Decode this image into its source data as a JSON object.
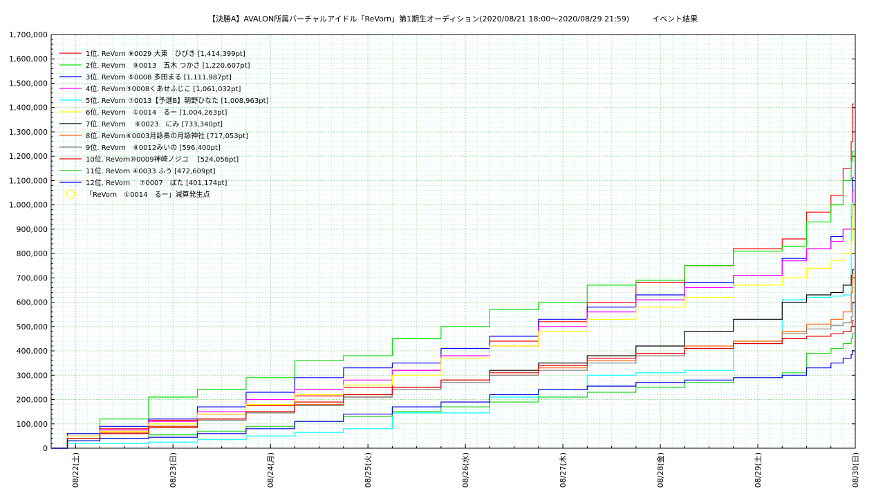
{
  "chart_data": {
    "type": "line",
    "title": "【決勝A】AVALON所属バーチャルアイドル「ReVorn」第1期生オーディション(2020/08/21 18:00〜2020/08/29 21:59)　　　イベント結果",
    "xlabel": "",
    "ylabel": "",
    "ylim": [
      0,
      1700000
    ],
    "yticks": [
      "0",
      "100,000",
      "200,000",
      "300,000",
      "400,000",
      "500,000",
      "600,000",
      "700,000",
      "800,000",
      "900,000",
      "1,000,000",
      "1,100,000",
      "1,200,000",
      "1,300,000",
      "1,400,000",
      "1,500,000",
      "1,600,000",
      "1,700,000"
    ],
    "x_start": "2020-08-21 18:00",
    "x_end": "2020-08-29 24:00",
    "xtick_labels": [
      "08/22(土)",
      "08/23(日)",
      "08/24(月)",
      "08/25(火)",
      "08/26(水)",
      "08/27(木)",
      "08/28(金)",
      "08/29(土)",
      "08/30(日)"
    ],
    "grid": true,
    "legend_position": "top-left",
    "series": [
      {
        "name": "1位. ReVorn ⑨0029 大東　ひびき [1,414,399pt]",
        "color": "#ff0000",
        "x": [
          "2020-08-21 18:00",
          "2020-08-21 22:00",
          "2020-08-22 06:00",
          "2020-08-22 18:00",
          "2020-08-23 06:00",
          "2020-08-23 18:00",
          "2020-08-24 06:00",
          "2020-08-24 18:00",
          "2020-08-25 06:00",
          "2020-08-25 18:00",
          "2020-08-26 06:00",
          "2020-08-26 18:00",
          "2020-08-27 06:00",
          "2020-08-27 18:00",
          "2020-08-28 06:00",
          "2020-08-28 18:00",
          "2020-08-29 06:00",
          "2020-08-29 12:00",
          "2020-08-29 18:00",
          "2020-08-29 21:00",
          "2020-08-29 23:00",
          "2020-08-30 00:00"
        ],
        "values": [
          0,
          60000,
          80000,
          115000,
          140000,
          175000,
          215000,
          250000,
          320000,
          380000,
          440000,
          520000,
          600000,
          680000,
          750000,
          820000,
          860000,
          970000,
          1040000,
          1150000,
          1260000,
          1414399
        ]
      },
      {
        "name": "2位. ReVorn　⑨0013　五木 つかさ [1,220,607pt]",
        "color": "#00e000",
        "x": [
          "2020-08-21 18:00",
          "2020-08-21 22:00",
          "2020-08-22 06:00",
          "2020-08-22 18:00",
          "2020-08-23 06:00",
          "2020-08-23 18:00",
          "2020-08-24 06:00",
          "2020-08-24 18:00",
          "2020-08-25 06:00",
          "2020-08-25 18:00",
          "2020-08-26 06:00",
          "2020-08-26 18:00",
          "2020-08-27 06:00",
          "2020-08-27 18:00",
          "2020-08-28 06:00",
          "2020-08-28 18:00",
          "2020-08-29 06:00",
          "2020-08-29 12:00",
          "2020-08-29 18:00",
          "2020-08-29 21:00",
          "2020-08-29 23:00",
          "2020-08-30 00:00"
        ],
        "values": [
          0,
          60000,
          120000,
          210000,
          240000,
          290000,
          360000,
          380000,
          450000,
          500000,
          570000,
          600000,
          670000,
          690000,
          750000,
          810000,
          830000,
          930000,
          1000000,
          1100000,
          1180000,
          1220607
        ]
      },
      {
        "name": "3位. ReVorn ⑤0008 多田まる [1,111,987pt]",
        "color": "#0000ff",
        "x": [
          "2020-08-21 18:00",
          "2020-08-21 22:00",
          "2020-08-22 06:00",
          "2020-08-22 18:00",
          "2020-08-23 06:00",
          "2020-08-23 18:00",
          "2020-08-24 06:00",
          "2020-08-24 18:00",
          "2020-08-25 06:00",
          "2020-08-25 18:00",
          "2020-08-26 06:00",
          "2020-08-26 18:00",
          "2020-08-27 06:00",
          "2020-08-27 18:00",
          "2020-08-28 06:00",
          "2020-08-28 18:00",
          "2020-08-29 06:00",
          "2020-08-29 12:00",
          "2020-08-29 18:00",
          "2020-08-29 21:00",
          "2020-08-29 23:00",
          "2020-08-30 00:00"
        ],
        "values": [
          0,
          60000,
          90000,
          120000,
          170000,
          230000,
          290000,
          330000,
          350000,
          410000,
          460000,
          530000,
          580000,
          630000,
          680000,
          710000,
          780000,
          820000,
          870000,
          900000,
          950000,
          1111987
        ]
      },
      {
        "name": "4位. ReVorn③0008くあせふじこ [1,061,032pt]",
        "color": "#ff00ff",
        "x": [
          "2020-08-21 18:00",
          "2020-08-21 22:00",
          "2020-08-22 06:00",
          "2020-08-22 18:00",
          "2020-08-23 06:00",
          "2020-08-23 18:00",
          "2020-08-24 06:00",
          "2020-08-24 18:00",
          "2020-08-25 06:00",
          "2020-08-25 18:00",
          "2020-08-26 06:00",
          "2020-08-26 18:00",
          "2020-08-27 06:00",
          "2020-08-27 18:00",
          "2020-08-28 06:00",
          "2020-08-28 18:00",
          "2020-08-29 06:00",
          "2020-08-29 12:00",
          "2020-08-29 18:00",
          "2020-08-29 21:00",
          "2020-08-29 23:00",
          "2020-08-30 00:00"
        ],
        "values": [
          0,
          50000,
          75000,
          110000,
          150000,
          200000,
          240000,
          280000,
          320000,
          380000,
          420000,
          500000,
          560000,
          610000,
          660000,
          710000,
          770000,
          820000,
          850000,
          900000,
          950000,
          1061032
        ]
      },
      {
        "name": "5位. ReVorn ⑦0013【予選B】朝野ひなた [1,008,963pt]",
        "color": "#00ffff",
        "x": [
          "2020-08-21 18:00",
          "2020-08-21 22:00",
          "2020-08-22 06:00",
          "2020-08-22 18:00",
          "2020-08-23 06:00",
          "2020-08-23 18:00",
          "2020-08-24 06:00",
          "2020-08-24 18:00",
          "2020-08-25 06:00",
          "2020-08-25 18:00",
          "2020-08-26 06:00",
          "2020-08-26 18:00",
          "2020-08-27 06:00",
          "2020-08-27 18:00",
          "2020-08-28 06:00",
          "2020-08-28 18:00",
          "2020-08-29 06:00",
          "2020-08-29 12:00",
          "2020-08-29 18:00",
          "2020-08-29 21:00",
          "2020-08-29 23:00",
          "2020-08-30 00:00"
        ],
        "values": [
          0,
          20000,
          20000,
          25000,
          35000,
          50000,
          65000,
          80000,
          145000,
          145000,
          210000,
          240000,
          300000,
          310000,
          320000,
          440000,
          610000,
          620000,
          625000,
          630000,
          1000000,
          1008963
        ]
      },
      {
        "name": "6位. ReVorn　①0014　るー [1,004,263pt]",
        "color": "#ffff00",
        "x": [
          "2020-08-21 18:00",
          "2020-08-21 22:00",
          "2020-08-22 06:00",
          "2020-08-22 18:00",
          "2020-08-23 06:00",
          "2020-08-23 18:00",
          "2020-08-24 06:00",
          "2020-08-24 18:00",
          "2020-08-25 06:00",
          "2020-08-25 18:00",
          "2020-08-26 06:00",
          "2020-08-26 18:00",
          "2020-08-27 06:00",
          "2020-08-27 18:00",
          "2020-08-28 06:00",
          "2020-08-28 18:00",
          "2020-08-29 06:00",
          "2020-08-29 12:00",
          "2020-08-29 18:00",
          "2020-08-29 21:00",
          "2020-08-29 23:00",
          "2020-08-30 00:00"
        ],
        "values": [
          0,
          50000,
          70000,
          100000,
          140000,
          180000,
          220000,
          260000,
          300000,
          370000,
          420000,
          480000,
          530000,
          580000,
          620000,
          670000,
          700000,
          740000,
          770000,
          800000,
          850000,
          1004263
        ]
      },
      {
        "name": "7位. ReVorn　 ⑥0023　にみ [733,340pt]",
        "color": "#000000",
        "x": [
          "2020-08-21 18:00",
          "2020-08-21 22:00",
          "2020-08-22 06:00",
          "2020-08-22 18:00",
          "2020-08-23 06:00",
          "2020-08-23 18:00",
          "2020-08-24 06:00",
          "2020-08-24 18:00",
          "2020-08-25 06:00",
          "2020-08-25 18:00",
          "2020-08-26 06:00",
          "2020-08-26 18:00",
          "2020-08-27 06:00",
          "2020-08-27 18:00",
          "2020-08-28 06:00",
          "2020-08-28 18:00",
          "2020-08-29 06:00",
          "2020-08-29 12:00",
          "2020-08-29 18:00",
          "2020-08-29 21:00",
          "2020-08-29 23:00",
          "2020-08-30 00:00"
        ],
        "values": [
          0,
          40000,
          60000,
          90000,
          120000,
          150000,
          180000,
          210000,
          250000,
          280000,
          320000,
          350000,
          380000,
          420000,
          480000,
          530000,
          600000,
          630000,
          640000,
          670000,
          710000,
          733340
        ]
      },
      {
        "name": "8位. ReVorn⑥0003月詠奏の月詠神社 [717,053pt]",
        "color": "#ff6000",
        "x": [
          "2020-08-21 18:00",
          "2020-08-21 22:00",
          "2020-08-22 06:00",
          "2020-08-22 18:00",
          "2020-08-23 06:00",
          "2020-08-23 18:00",
          "2020-08-24 06:00",
          "2020-08-24 18:00",
          "2020-08-25 06:00",
          "2020-08-25 18:00",
          "2020-08-26 06:00",
          "2020-08-26 18:00",
          "2020-08-27 06:00",
          "2020-08-27 18:00",
          "2020-08-28 06:00",
          "2020-08-28 18:00",
          "2020-08-29 06:00",
          "2020-08-29 12:00",
          "2020-08-29 18:00",
          "2020-08-29 21:00",
          "2020-08-29 23:00",
          "2020-08-30 00:00"
        ],
        "values": [
          0,
          40000,
          65000,
          90000,
          120000,
          150000,
          180000,
          220000,
          250000,
          280000,
          300000,
          330000,
          360000,
          380000,
          420000,
          440000,
          480000,
          510000,
          530000,
          560000,
          640000,
          717053
        ]
      },
      {
        "name": "9位. ReVorn　⑧0012みいの [596,400pt]",
        "color": "#808080",
        "x": [
          "2020-08-21 18:00",
          "2020-08-21 22:00",
          "2020-08-22 06:00",
          "2020-08-22 18:00",
          "2020-08-23 06:00",
          "2020-08-23 18:00",
          "2020-08-24 06:00",
          "2020-08-24 18:00",
          "2020-08-25 06:00",
          "2020-08-25 18:00",
          "2020-08-26 06:00",
          "2020-08-26 18:00",
          "2020-08-27 06:00",
          "2020-08-27 18:00",
          "2020-08-28 06:00",
          "2020-08-28 18:00",
          "2020-08-29 06:00",
          "2020-08-29 12:00",
          "2020-08-29 18:00",
          "2020-08-29 21:00",
          "2020-08-29 23:00",
          "2020-08-30 00:00"
        ],
        "values": [
          0,
          40000,
          60000,
          85000,
          115000,
          145000,
          175000,
          210000,
          240000,
          270000,
          300000,
          320000,
          350000,
          380000,
          410000,
          430000,
          470000,
          490000,
          505000,
          515000,
          540000,
          596400
        ]
      },
      {
        "name": "10位. ReVorn⑩0009神崎ノジコ　 [524,056pt]",
        "color": "#e00000",
        "x": [
          "2020-08-21 18:00",
          "2020-08-21 22:00",
          "2020-08-22 06:00",
          "2020-08-22 18:00",
          "2020-08-23 06:00",
          "2020-08-23 18:00",
          "2020-08-24 06:00",
          "2020-08-24 18:00",
          "2020-08-25 06:00",
          "2020-08-25 18:00",
          "2020-08-26 06:00",
          "2020-08-26 18:00",
          "2020-08-27 06:00",
          "2020-08-27 18:00",
          "2020-08-28 06:00",
          "2020-08-28 18:00",
          "2020-08-29 06:00",
          "2020-08-29 12:00",
          "2020-08-29 18:00",
          "2020-08-29 21:00",
          "2020-08-29 23:00",
          "2020-08-30 00:00"
        ],
        "values": [
          0,
          40000,
          60000,
          85000,
          120000,
          150000,
          190000,
          220000,
          250000,
          280000,
          310000,
          340000,
          370000,
          390000,
          410000,
          430000,
          450000,
          460000,
          470000,
          480000,
          500000,
          524056
        ]
      },
      {
        "name": "11位. ReVorn ④0033 ふう [472,609pt]",
        "color": "#20d020",
        "x": [
          "2020-08-21 18:00",
          "2020-08-21 22:00",
          "2020-08-22 06:00",
          "2020-08-22 18:00",
          "2020-08-23 06:00",
          "2020-08-23 18:00",
          "2020-08-24 06:00",
          "2020-08-24 18:00",
          "2020-08-25 06:00",
          "2020-08-25 18:00",
          "2020-08-26 06:00",
          "2020-08-26 18:00",
          "2020-08-27 06:00",
          "2020-08-27 18:00",
          "2020-08-28 06:00",
          "2020-08-28 18:00",
          "2020-08-29 06:00",
          "2020-08-29 12:00",
          "2020-08-29 18:00",
          "2020-08-29 21:00",
          "2020-08-29 23:00",
          "2020-08-30 00:00"
        ],
        "values": [
          0,
          30000,
          40000,
          55000,
          70000,
          90000,
          110000,
          130000,
          150000,
          170000,
          190000,
          210000,
          230000,
          250000,
          270000,
          290000,
          310000,
          390000,
          410000,
          430000,
          450000,
          472609
        ]
      },
      {
        "name": "12位. ReVorn　 ⑦0007　ぼた [401,174pt]",
        "color": "#0000e0",
        "x": [
          "2020-08-21 18:00",
          "2020-08-21 22:00",
          "2020-08-22 06:00",
          "2020-08-22 18:00",
          "2020-08-23 06:00",
          "2020-08-23 18:00",
          "2020-08-24 06:00",
          "2020-08-24 18:00",
          "2020-08-25 06:00",
          "2020-08-25 18:00",
          "2020-08-26 06:00",
          "2020-08-26 18:00",
          "2020-08-27 06:00",
          "2020-08-27 18:00",
          "2020-08-28 06:00",
          "2020-08-28 18:00",
          "2020-08-29 06:00",
          "2020-08-29 12:00",
          "2020-08-29 18:00",
          "2020-08-29 21:00",
          "2020-08-29 23:00",
          "2020-08-30 00:00"
        ],
        "values": [
          0,
          30000,
          40000,
          45000,
          60000,
          80000,
          110000,
          140000,
          170000,
          190000,
          220000,
          240000,
          255000,
          270000,
          280000,
          290000,
          300000,
          330000,
          350000,
          370000,
          385000,
          401174
        ]
      }
    ],
    "marker_legend": {
      "label": "「ReVorn　①0014　るー」減算発生点",
      "color": "#ffff00",
      "shape": "circle"
    }
  }
}
